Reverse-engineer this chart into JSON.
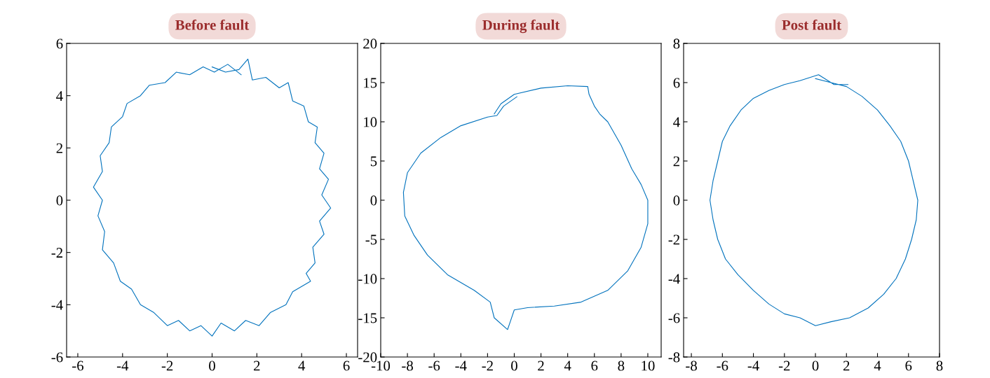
{
  "chart_data": [
    {
      "type": "line",
      "title": "Before fault",
      "xlim": [
        -6.5,
        6.5
      ],
      "ylim": [
        -6,
        6
      ],
      "xticks": [
        -6,
        -4,
        -2,
        0,
        2,
        4,
        6
      ],
      "yticks": [
        -6,
        -4,
        -2,
        0,
        2,
        4,
        6
      ],
      "grid": false,
      "marker": "none",
      "line_style": "solid",
      "series": [
        {
          "color": "#0072bd",
          "x": [
            0,
            0.6,
            1.2,
            1.6,
            1.8,
            2.4,
            3.0,
            3.4,
            3.6,
            4.1,
            4.3,
            4.7,
            4.6,
            5.0,
            4.8,
            5.2,
            4.9,
            5.3,
            4.8,
            5.0,
            4.5,
            4.6,
            4.2,
            4.4,
            3.6,
            3.3,
            2.6,
            2.1,
            1.5,
            1.0,
            0.4,
            0,
            -0.5,
            -1.0,
            -1.5,
            -2.0,
            -2.6,
            -3.2,
            -3.6,
            -4.1,
            -4.4,
            -4.9,
            -4.8,
            -5.1,
            -4.9,
            -5.3,
            -4.9,
            -5.0,
            -4.6,
            -4.5,
            -4.0,
            -3.8,
            -3.2,
            -2.8,
            -2.1,
            -1.6,
            -1.0,
            -0.4,
            0.1,
            0.7,
            1.3
          ],
          "values": [
            5.1,
            4.9,
            5.0,
            5.4,
            4.6,
            4.7,
            4.3,
            4.5,
            3.8,
            3.6,
            3.0,
            2.8,
            2.2,
            1.8,
            1.2,
            0.8,
            0.2,
            -0.3,
            -0.8,
            -1.3,
            -1.8,
            -2.4,
            -2.8,
            -3.1,
            -3.5,
            -4.0,
            -4.3,
            -4.8,
            -4.6,
            -5.0,
            -4.7,
            -5.2,
            -4.8,
            -5.0,
            -4.6,
            -4.8,
            -4.3,
            -4.0,
            -3.4,
            -3.1,
            -2.4,
            -1.9,
            -1.2,
            -0.6,
            0,
            0.5,
            1.1,
            1.7,
            2.2,
            2.8,
            3.2,
            3.7,
            4.0,
            4.4,
            4.5,
            4.9,
            4.8,
            5.1,
            4.9,
            5.2,
            4.8
          ]
        }
      ]
    },
    {
      "type": "line",
      "title": "During fault",
      "xlim": [
        -10,
        11
      ],
      "ylim": [
        -20,
        20
      ],
      "xticks": [
        -10,
        -8,
        -6,
        -4,
        -2,
        0,
        2,
        4,
        6,
        8,
        10
      ],
      "yticks": [
        -20,
        -15,
        -10,
        -5,
        0,
        5,
        10,
        15,
        20
      ],
      "grid": false,
      "marker": "none",
      "line_style": "solid",
      "series": [
        {
          "color": "#0072bd",
          "x": [
            -1.5,
            -1,
            0,
            2,
            4,
            5.5,
            5.6,
            6,
            6.4,
            7,
            7.5,
            8,
            8.8,
            9.5,
            10,
            10,
            9.5,
            8.5,
            7,
            5,
            3,
            1,
            0,
            -0.3,
            -0.5,
            -1.5,
            -1.8,
            -3,
            -5,
            -6.5,
            -7.5,
            -8.2,
            -8.3,
            -8,
            -7,
            -5.5,
            -4,
            -2,
            -1.3,
            -0.8,
            0.2
          ],
          "values": [
            11,
            12.3,
            13.5,
            14.3,
            14.6,
            14.5,
            13.5,
            12,
            11,
            10,
            8.5,
            7,
            4,
            2,
            0,
            -3,
            -6,
            -9,
            -11.5,
            -13,
            -13.5,
            -13.7,
            -14,
            -15.5,
            -16.5,
            -15,
            -13,
            -11.5,
            -9.5,
            -7,
            -4.5,
            -2,
            1,
            3.5,
            6,
            8,
            9.5,
            10.6,
            10.8,
            12.0,
            13.2
          ]
        }
      ]
    },
    {
      "type": "line",
      "title": "Post fault",
      "xlim": [
        -8.5,
        8
      ],
      "ylim": [
        -8,
        8
      ],
      "xticks": [
        -8,
        -6,
        -4,
        -2,
        0,
        2,
        4,
        6,
        8
      ],
      "yticks": [
        -8,
        -6,
        -4,
        -2,
        0,
        2,
        4,
        6,
        8
      ],
      "grid": false,
      "marker": "none",
      "line_style": "solid",
      "series": [
        {
          "color": "#0072bd",
          "x": [
            0,
            1,
            2,
            3,
            4,
            4.8,
            5.5,
            6,
            6.3,
            6.6,
            6.5,
            6.2,
            5.8,
            5.2,
            4.4,
            3.4,
            2.2,
            1,
            0,
            -1,
            -2,
            -3,
            -4,
            -5,
            -5.8,
            -6.3,
            -6.6,
            -6.8,
            -6.6,
            -6.3,
            -6,
            -5.5,
            -4.8,
            -4,
            -3,
            -2,
            -1,
            0.2,
            1.2,
            2.1
          ],
          "values": [
            6.2,
            6.0,
            5.8,
            5.3,
            4.6,
            3.8,
            3,
            2,
            1,
            0,
            -1,
            -2,
            -3,
            -4,
            -4.8,
            -5.5,
            -6,
            -6.2,
            -6.4,
            -6.0,
            -5.8,
            -5.3,
            -4.6,
            -3.8,
            -3,
            -2,
            -1,
            0,
            1,
            2,
            3,
            3.8,
            4.6,
            5.2,
            5.6,
            5.9,
            6.1,
            6.4,
            5.9,
            5.9
          ]
        }
      ]
    }
  ]
}
